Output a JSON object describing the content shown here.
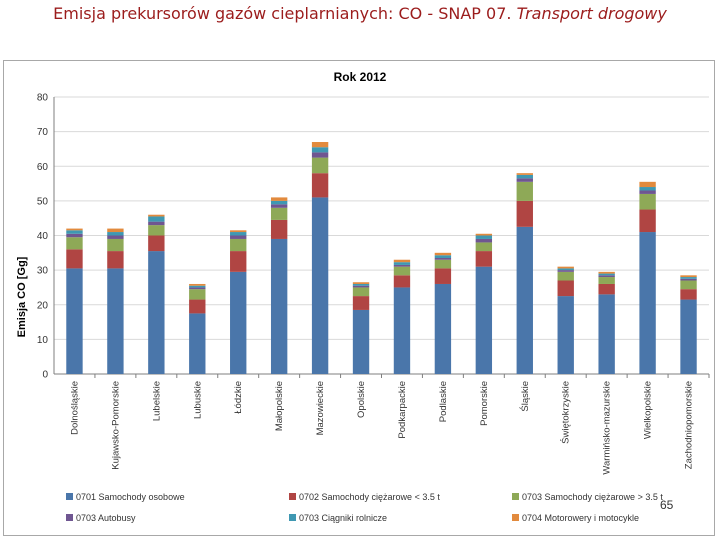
{
  "slide": {
    "title_main": "Emisja prekursorów gazów cieplarnianych:  CO - SNAP 07.",
    "title_italic": "Transport drogowy",
    "page_number": "65"
  },
  "colors": {
    "title": "#9b1c1c",
    "s0701": "#4a76aa",
    "s0702": "#b04543",
    "s0703a": "#8ea957",
    "s0703b": "#6f5691",
    "s0703c": "#3f98b2",
    "s0704": "#e28a3d"
  },
  "chart_data": {
    "type": "bar",
    "stacked": true,
    "title": "Rok 2012",
    "xlabel": "",
    "ylabel": "Emisja CO [Gg]",
    "ylim": [
      0,
      80
    ],
    "yticks": [
      0,
      10,
      20,
      30,
      40,
      50,
      60,
      70,
      80
    ],
    "grid": true,
    "legend_position": "bottom",
    "categories": [
      "Dolnośląskie",
      "Kujawsko-Pomorskie",
      "Lubelskie",
      "Lubuskie",
      "Łódzkie",
      "Małopolskie",
      "Mazowieckie",
      "Opolskie",
      "Podkarpackie",
      "Podlaskie",
      "Pomorskie",
      "Śląskie",
      "Świętokrzyskie",
      "Warmińsko-mazurskie",
      "Wielkopolskie",
      "Zachodniopomorskie"
    ],
    "series": [
      {
        "name": "0701  Samochody osobowe",
        "color": "#4a76aa",
        "values": [
          30.5,
          30.5,
          35.5,
          17.5,
          29.5,
          39.0,
          51.0,
          18.5,
          25.0,
          26.0,
          31.0,
          42.5,
          22.5,
          23.0,
          41.0,
          21.5
        ]
      },
      {
        "name": "0702  Samochody ciężarowe < 3.5 t",
        "color": "#b04543",
        "values": [
          5.5,
          5.0,
          4.5,
          4.0,
          6.0,
          5.5,
          7.0,
          4.0,
          3.5,
          4.5,
          4.5,
          7.5,
          4.5,
          3.0,
          6.5,
          3.0
        ]
      },
      {
        "name": "0703  Samochody ciężarowe > 3.5 t",
        "color": "#8ea957",
        "values": [
          3.5,
          3.5,
          3.0,
          3.0,
          3.5,
          3.5,
          4.5,
          2.5,
          2.5,
          2.5,
          2.5,
          5.5,
          2.5,
          2.0,
          4.5,
          2.5
        ]
      },
      {
        "name": "0703  Autobusy",
        "color": "#6f5691",
        "values": [
          1.0,
          1.0,
          1.0,
          0.5,
          1.0,
          1.0,
          1.5,
          0.5,
          0.5,
          0.5,
          1.0,
          1.0,
          0.5,
          0.5,
          1.0,
          0.5
        ]
      },
      {
        "name": "0703  Ciągniki rolnicze",
        "color": "#3f98b2",
        "values": [
          1.0,
          1.0,
          1.5,
          0.5,
          1.0,
          1.0,
          1.5,
          0.5,
          0.8,
          0.8,
          1.0,
          1.0,
          0.5,
          0.5,
          1.0,
          0.5
        ]
      },
      {
        "name": "0704  Motorowery i motocykle",
        "color": "#e28a3d",
        "values": [
          0.5,
          1.0,
          0.5,
          0.5,
          0.5,
          1.0,
          1.5,
          0.5,
          0.7,
          0.7,
          0.5,
          0.5,
          0.5,
          0.5,
          1.5,
          0.5
        ]
      }
    ]
  }
}
